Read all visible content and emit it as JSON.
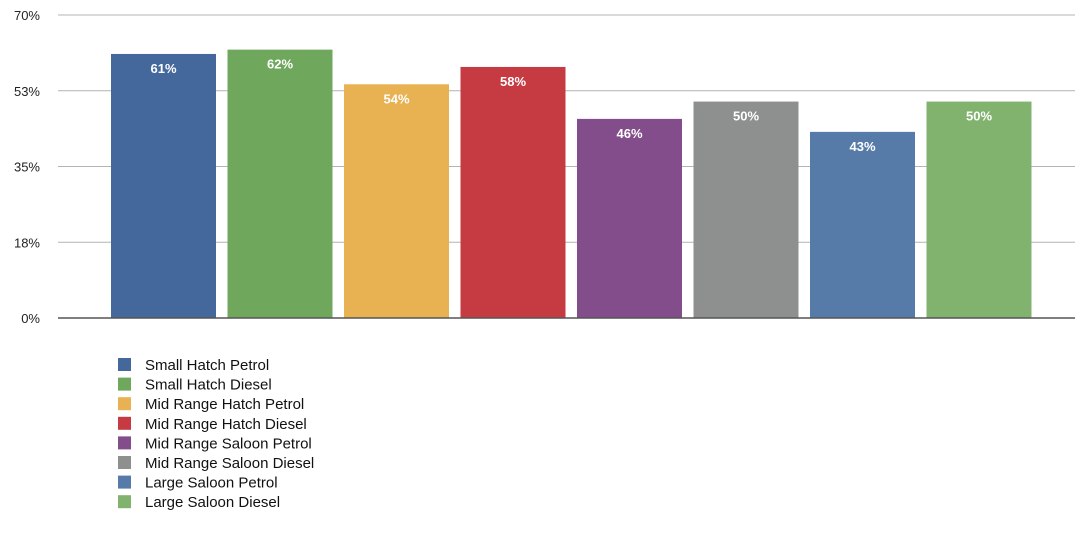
{
  "chart_data": {
    "type": "bar",
    "y_ticks": [
      {
        "value": 0,
        "label": "0%"
      },
      {
        "value": 17.5,
        "label": "18%"
      },
      {
        "value": 35,
        "label": "35%"
      },
      {
        "value": 52.5,
        "label": "53%"
      },
      {
        "value": 70,
        "label": "70%"
      }
    ],
    "ylim": [
      0,
      70
    ],
    "grid": true,
    "legend_position": "bottom-left",
    "series": [
      {
        "name": "Small Hatch Petrol",
        "value": 61,
        "label": "61%",
        "color": "#44679c"
      },
      {
        "name": "Small Hatch Diesel",
        "value": 62,
        "label": "62%",
        "color": "#6fa85c"
      },
      {
        "name": "Mid Range Hatch Petrol",
        "value": 54,
        "label": "54%",
        "color": "#e8b253"
      },
      {
        "name": "Mid Range Hatch Diesel",
        "value": 58,
        "label": "58%",
        "color": "#c63b42"
      },
      {
        "name": "Mid Range Saloon Petrol",
        "value": 46,
        "label": "46%",
        "color": "#834d8b"
      },
      {
        "name": "Mid Range Saloon Diesel",
        "value": 50,
        "label": "50%",
        "color": "#8d908f"
      },
      {
        "name": "Large Saloon Petrol",
        "value": 43,
        "label": "43%",
        "color": "#567ba9"
      },
      {
        "name": "Large Saloon Diesel",
        "value": 50,
        "label": "50%",
        "color": "#81b36f"
      }
    ]
  }
}
